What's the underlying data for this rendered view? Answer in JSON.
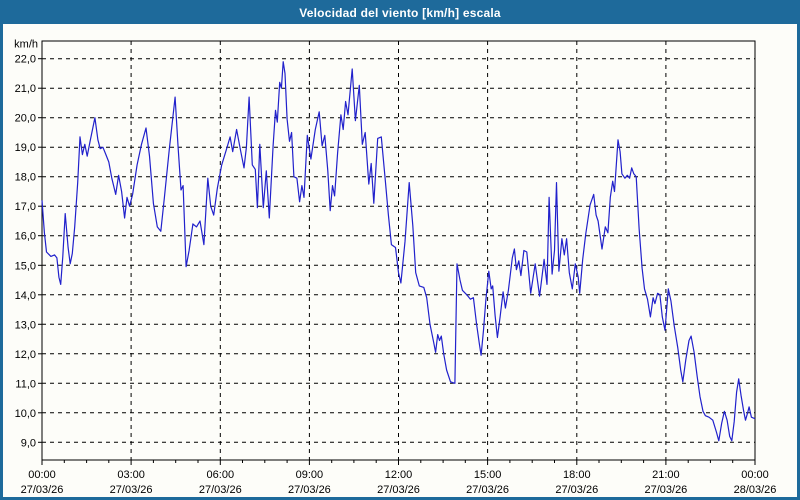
{
  "title": "Velocidad del viento [km/h] escala",
  "colors": {
    "titlebar_bg": "#1E6A9B",
    "title_text": "#FFFFFF",
    "plot_bg": "#FDFDF9",
    "grid": "#000000",
    "frame": "#000000",
    "series_line": "#2121CC"
  },
  "chart_data": {
    "type": "line",
    "title": "Velocidad del viento [km/h] escala",
    "ylabel": "km/h",
    "grid": true,
    "legend": "none",
    "ylim": [
      8.4,
      22.6
    ],
    "xlim_hours": [
      0,
      24
    ],
    "y_ticks": {
      "values": [
        9,
        10,
        11,
        12,
        13,
        14,
        15,
        16,
        17,
        18,
        19,
        20,
        21,
        22
      ],
      "labels": [
        "9,0",
        "10,0",
        "11,0",
        "12,0",
        "13,0",
        "14,0",
        "15,0",
        "16,0",
        "17,0",
        "18,0",
        "19,0",
        "20,0",
        "21,0",
        "22,0"
      ]
    },
    "x_ticks": [
      {
        "hour": 0,
        "time": "00:00",
        "date": "27/03/26"
      },
      {
        "hour": 3,
        "time": "03:00",
        "date": "27/03/26"
      },
      {
        "hour": 6,
        "time": "06:00",
        "date": "27/03/26"
      },
      {
        "hour": 9,
        "time": "09:00",
        "date": "27/03/26"
      },
      {
        "hour": 12,
        "time": "12:00",
        "date": "27/03/26"
      },
      {
        "hour": 15,
        "time": "15:00",
        "date": "27/03/26"
      },
      {
        "hour": 18,
        "time": "18:00",
        "date": "27/03/26"
      },
      {
        "hour": 21,
        "time": "21:00",
        "date": "27/03/26"
      },
      {
        "hour": 24,
        "time": "00:00",
        "date": "28/03/26"
      }
    ],
    "minor_tick_step_hours": 0.75,
    "series": [
      {
        "name": "velocidad-del-viento",
        "unit": "km/h",
        "color": "#2121CC",
        "points": [
          [
            0.0,
            17.2
          ],
          [
            0.08,
            16.1
          ],
          [
            0.15,
            15.45
          ],
          [
            0.3,
            15.3
          ],
          [
            0.42,
            15.35
          ],
          [
            0.5,
            15.25
          ],
          [
            0.57,
            14.6
          ],
          [
            0.63,
            14.35
          ],
          [
            0.7,
            15.3
          ],
          [
            0.78,
            16.75
          ],
          [
            0.88,
            15.6
          ],
          [
            0.95,
            15.05
          ],
          [
            1.02,
            15.4
          ],
          [
            1.1,
            16.3
          ],
          [
            1.2,
            17.8
          ],
          [
            1.28,
            19.35
          ],
          [
            1.36,
            18.75
          ],
          [
            1.44,
            19.1
          ],
          [
            1.52,
            18.7
          ],
          [
            1.62,
            19.2
          ],
          [
            1.78,
            20.0
          ],
          [
            1.88,
            19.25
          ],
          [
            1.96,
            18.95
          ],
          [
            2.05,
            19.0
          ],
          [
            2.15,
            18.75
          ],
          [
            2.25,
            18.5
          ],
          [
            2.35,
            17.95
          ],
          [
            2.48,
            17.4
          ],
          [
            2.58,
            18.05
          ],
          [
            2.68,
            17.5
          ],
          [
            2.78,
            16.6
          ],
          [
            2.86,
            17.3
          ],
          [
            2.95,
            17.0
          ],
          [
            3.05,
            17.4
          ],
          [
            3.2,
            18.4
          ],
          [
            3.35,
            19.1
          ],
          [
            3.5,
            19.65
          ],
          [
            3.62,
            18.7
          ],
          [
            3.75,
            17.1
          ],
          [
            3.88,
            16.3
          ],
          [
            4.0,
            16.15
          ],
          [
            4.12,
            17.3
          ],
          [
            4.28,
            18.9
          ],
          [
            4.48,
            20.7
          ],
          [
            4.58,
            19.0
          ],
          [
            4.68,
            17.55
          ],
          [
            4.75,
            17.7
          ],
          [
            4.85,
            14.95
          ],
          [
            4.95,
            15.5
          ],
          [
            5.08,
            16.4
          ],
          [
            5.2,
            16.3
          ],
          [
            5.32,
            16.5
          ],
          [
            5.45,
            15.7
          ],
          [
            5.58,
            17.95
          ],
          [
            5.68,
            17.0
          ],
          [
            5.78,
            16.7
          ],
          [
            5.9,
            17.6
          ],
          [
            6.05,
            18.4
          ],
          [
            6.2,
            18.9
          ],
          [
            6.33,
            19.35
          ],
          [
            6.42,
            18.85
          ],
          [
            6.55,
            19.6
          ],
          [
            6.68,
            18.9
          ],
          [
            6.8,
            18.3
          ],
          [
            6.88,
            19.0
          ],
          [
            6.97,
            20.7
          ],
          [
            7.08,
            18.4
          ],
          [
            7.18,
            18.25
          ],
          [
            7.25,
            16.95
          ],
          [
            7.33,
            19.1
          ],
          [
            7.45,
            16.95
          ],
          [
            7.55,
            18.2
          ],
          [
            7.65,
            16.6
          ],
          [
            7.78,
            19.05
          ],
          [
            7.86,
            20.25
          ],
          [
            7.92,
            19.85
          ],
          [
            8.0,
            21.2
          ],
          [
            8.06,
            21.0
          ],
          [
            8.12,
            21.9
          ],
          [
            8.18,
            21.5
          ],
          [
            8.25,
            19.95
          ],
          [
            8.33,
            19.2
          ],
          [
            8.4,
            19.5
          ],
          [
            8.48,
            18.0
          ],
          [
            8.58,
            17.95
          ],
          [
            8.67,
            17.15
          ],
          [
            8.75,
            17.7
          ],
          [
            8.82,
            17.3
          ],
          [
            8.93,
            19.4
          ],
          [
            9.05,
            18.6
          ],
          [
            9.2,
            19.6
          ],
          [
            9.33,
            20.2
          ],
          [
            9.43,
            19.05
          ],
          [
            9.52,
            19.4
          ],
          [
            9.62,
            18.2
          ],
          [
            9.7,
            16.85
          ],
          [
            9.78,
            17.7
          ],
          [
            9.85,
            17.35
          ],
          [
            9.95,
            18.8
          ],
          [
            10.06,
            20.1
          ],
          [
            10.14,
            19.6
          ],
          [
            10.22,
            20.55
          ],
          [
            10.3,
            20.1
          ],
          [
            10.44,
            21.65
          ],
          [
            10.55,
            19.9
          ],
          [
            10.68,
            21.1
          ],
          [
            10.78,
            19.1
          ],
          [
            10.88,
            19.5
          ],
          [
            11.0,
            17.75
          ],
          [
            11.08,
            18.45
          ],
          [
            11.17,
            17.1
          ],
          [
            11.3,
            19.3
          ],
          [
            11.42,
            19.35
          ],
          [
            11.55,
            17.95
          ],
          [
            11.66,
            16.7
          ],
          [
            11.76,
            15.7
          ],
          [
            11.9,
            15.6
          ],
          [
            12.0,
            14.75
          ],
          [
            12.08,
            14.4
          ],
          [
            12.22,
            15.8
          ],
          [
            12.36,
            17.8
          ],
          [
            12.48,
            16.35
          ],
          [
            12.58,
            14.75
          ],
          [
            12.7,
            14.3
          ],
          [
            12.85,
            14.25
          ],
          [
            12.95,
            13.9
          ],
          [
            13.06,
            13.0
          ],
          [
            13.18,
            12.4
          ],
          [
            13.25,
            12.05
          ],
          [
            13.32,
            12.65
          ],
          [
            13.38,
            12.45
          ],
          [
            13.44,
            12.6
          ],
          [
            13.52,
            12.0
          ],
          [
            13.62,
            11.45
          ],
          [
            13.75,
            11.05
          ],
          [
            13.9,
            11.0
          ],
          [
            13.97,
            15.05
          ],
          [
            14.07,
            14.5
          ],
          [
            14.15,
            14.15
          ],
          [
            14.3,
            14.0
          ],
          [
            14.42,
            13.85
          ],
          [
            14.52,
            13.9
          ],
          [
            14.63,
            13.0
          ],
          [
            14.72,
            12.35
          ],
          [
            14.78,
            11.95
          ],
          [
            14.86,
            12.8
          ],
          [
            14.94,
            13.8
          ],
          [
            15.04,
            14.8
          ],
          [
            15.12,
            14.2
          ],
          [
            15.17,
            14.3
          ],
          [
            15.25,
            13.3
          ],
          [
            15.33,
            12.55
          ],
          [
            15.42,
            13.25
          ],
          [
            15.52,
            14.1
          ],
          [
            15.6,
            13.55
          ],
          [
            15.7,
            14.15
          ],
          [
            15.83,
            15.25
          ],
          [
            15.9,
            15.55
          ],
          [
            15.97,
            14.85
          ],
          [
            16.05,
            15.15
          ],
          [
            16.12,
            14.65
          ],
          [
            16.22,
            15.5
          ],
          [
            16.32,
            15.45
          ],
          [
            16.45,
            14.05
          ],
          [
            16.6,
            15.05
          ],
          [
            16.75,
            13.95
          ],
          [
            16.9,
            15.2
          ],
          [
            17.0,
            14.35
          ],
          [
            17.07,
            17.3
          ],
          [
            17.17,
            14.7
          ],
          [
            17.25,
            15.5
          ],
          [
            17.32,
            17.8
          ],
          [
            17.4,
            14.8
          ],
          [
            17.5,
            15.9
          ],
          [
            17.58,
            15.35
          ],
          [
            17.66,
            15.9
          ],
          [
            17.75,
            14.75
          ],
          [
            17.85,
            14.2
          ],
          [
            17.95,
            15.05
          ],
          [
            18.05,
            14.6
          ],
          [
            18.1,
            14.05
          ],
          [
            18.2,
            15.2
          ],
          [
            18.3,
            16.05
          ],
          [
            18.45,
            17.05
          ],
          [
            18.57,
            17.4
          ],
          [
            18.65,
            16.7
          ],
          [
            18.72,
            16.5
          ],
          [
            18.85,
            15.55
          ],
          [
            18.96,
            16.3
          ],
          [
            19.05,
            16.1
          ],
          [
            19.13,
            17.3
          ],
          [
            19.21,
            17.85
          ],
          [
            19.27,
            17.5
          ],
          [
            19.39,
            19.25
          ],
          [
            19.46,
            18.85
          ],
          [
            19.52,
            18.1
          ],
          [
            19.62,
            17.95
          ],
          [
            19.7,
            18.05
          ],
          [
            19.78,
            17.95
          ],
          [
            19.85,
            18.3
          ],
          [
            19.92,
            18.1
          ],
          [
            20.0,
            18.0
          ],
          [
            20.1,
            16.25
          ],
          [
            20.2,
            14.9
          ],
          [
            20.28,
            14.2
          ],
          [
            20.38,
            13.85
          ],
          [
            20.48,
            13.25
          ],
          [
            20.57,
            13.9
          ],
          [
            20.63,
            13.7
          ],
          [
            20.72,
            14.05
          ],
          [
            20.8,
            14.0
          ],
          [
            20.88,
            13.25
          ],
          [
            20.97,
            12.8
          ],
          [
            21.08,
            14.2
          ],
          [
            21.17,
            13.8
          ],
          [
            21.28,
            12.95
          ],
          [
            21.4,
            12.2
          ],
          [
            21.5,
            11.45
          ],
          [
            21.57,
            11.05
          ],
          [
            21.67,
            11.8
          ],
          [
            21.78,
            12.45
          ],
          [
            21.85,
            12.6
          ],
          [
            21.95,
            12.05
          ],
          [
            22.05,
            11.25
          ],
          [
            22.15,
            10.55
          ],
          [
            22.25,
            10.05
          ],
          [
            22.33,
            9.9
          ],
          [
            22.45,
            9.85
          ],
          [
            22.58,
            9.75
          ],
          [
            22.7,
            9.35
          ],
          [
            22.78,
            9.05
          ],
          [
            22.88,
            9.65
          ],
          [
            22.97,
            10.05
          ],
          [
            23.06,
            9.75
          ],
          [
            23.15,
            9.2
          ],
          [
            23.22,
            9.05
          ],
          [
            23.3,
            9.7
          ],
          [
            23.38,
            10.7
          ],
          [
            23.45,
            11.15
          ],
          [
            23.53,
            10.6
          ],
          [
            23.62,
            10.05
          ],
          [
            23.68,
            9.75
          ],
          [
            23.75,
            10.0
          ],
          [
            23.8,
            10.2
          ],
          [
            23.88,
            9.85
          ],
          [
            24.0,
            9.8
          ]
        ]
      }
    ]
  }
}
